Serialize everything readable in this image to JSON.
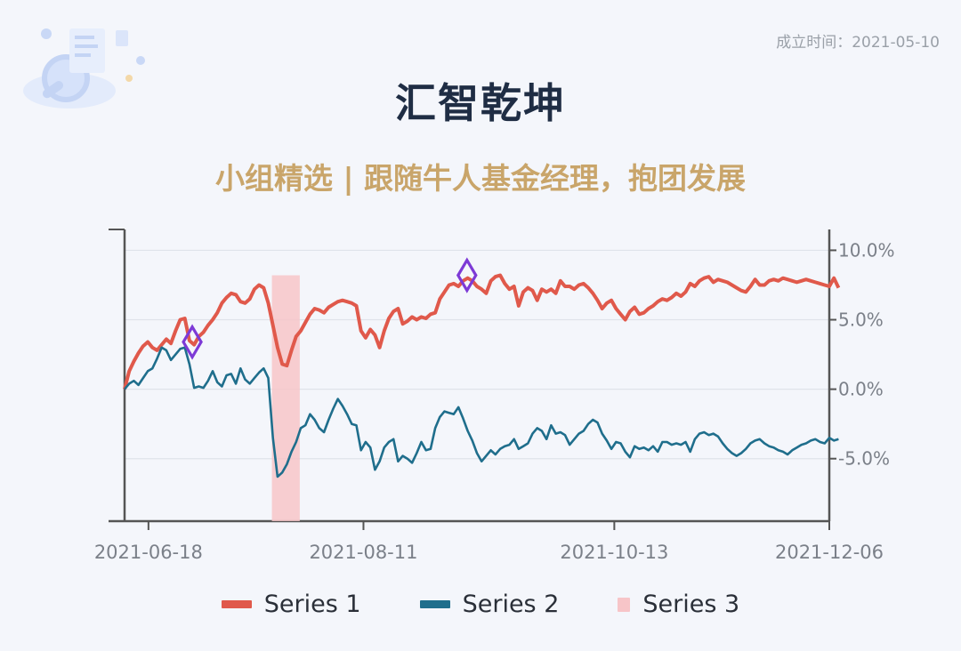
{
  "header": {
    "found_date": "成立时间：2021-05-10",
    "title": "汇智乾坤",
    "subtitle": "小组精选 | 跟随牛人基金经理，抱团发展"
  },
  "colors": {
    "fund": "#e0594b",
    "index": "#1f6e8c",
    "drawdown": "#f7c5c8",
    "marker": "#7d3ad6",
    "title": "#1f2d44",
    "subtitle": "#c9a56a"
  },
  "legend": [
    {
      "label": "Series 1",
      "color": "#e0594b",
      "style": "line"
    },
    {
      "label": "Series 2",
      "color": "#1f6e8c",
      "style": "line"
    },
    {
      "label": "Series 3",
      "color": "#f7c5c8",
      "style": "band"
    }
  ],
  "chart_data": {
    "type": "line",
    "x_ticks": [
      "2021-06-18",
      "2021-08-11",
      "2021-10-13",
      "2021-12-06"
    ],
    "y_ticks": [
      "10.0%",
      "5.0%",
      "0.0%",
      "-5.0%"
    ],
    "ylim": [
      -9.5,
      11.5
    ],
    "grid": true,
    "x_count": 153,
    "series": [
      {
        "name": "Series 1",
        "color": "#e0594b",
        "values": [
          0.0,
          1.3,
          2.0,
          2.6,
          3.1,
          3.4,
          3.0,
          2.8,
          3.2,
          3.6,
          3.3,
          4.2,
          5.0,
          5.1,
          3.5,
          3.2,
          3.8,
          4.1,
          4.6,
          5.0,
          5.5,
          6.2,
          6.6,
          6.9,
          6.8,
          6.3,
          6.2,
          6.5,
          7.2,
          7.5,
          7.3,
          6.2,
          4.6,
          3.0,
          1.8,
          1.7,
          2.8,
          3.8,
          4.2,
          4.8,
          5.4,
          5.8,
          5.7,
          5.5,
          5.9,
          6.1,
          6.3,
          6.4,
          6.3,
          6.2,
          6.0,
          4.2,
          3.7,
          4.3,
          3.9,
          3.0,
          4.2,
          5.1,
          5.6,
          5.8,
          4.7,
          4.9,
          5.2,
          5.0,
          5.2,
          5.1,
          5.4,
          5.5,
          6.5,
          7.0,
          7.5,
          7.6,
          7.4,
          7.8,
          8.0,
          7.8,
          7.4,
          7.2,
          6.9,
          7.8,
          8.1,
          8.2,
          7.6,
          7.2,
          7.4,
          6.0,
          7.0,
          7.3,
          7.1,
          6.4,
          7.2,
          7.0,
          7.2,
          6.9,
          7.8,
          7.4,
          7.4,
          7.2,
          7.5,
          7.6,
          7.3,
          6.9,
          6.4,
          5.8,
          6.2,
          6.4,
          5.8,
          5.4,
          5.0,
          5.6,
          5.9,
          5.4,
          5.5,
          5.8,
          6.0,
          6.3,
          6.5,
          6.4,
          6.6,
          6.9,
          6.7,
          7.0,
          7.6,
          7.4,
          7.8,
          8.0,
          8.1,
          7.7,
          7.9,
          7.8,
          7.7,
          7.5,
          7.3,
          7.1,
          7.0,
          7.4,
          7.9,
          7.5,
          7.5,
          7.8,
          7.9,
          7.8,
          8.0,
          7.9,
          7.8,
          7.7,
          7.8,
          7.9,
          7.8,
          7.7,
          7.6,
          7.5,
          7.4,
          8.0,
          7.3
        ]
      },
      {
        "name": "Series 2",
        "color": "#1f6e8c",
        "values": [
          0.0,
          0.4,
          0.6,
          0.3,
          0.8,
          1.3,
          1.5,
          2.2,
          3.0,
          2.8,
          2.1,
          2.5,
          2.9,
          3.0,
          1.8,
          0.1,
          0.2,
          0.1,
          0.6,
          1.3,
          0.5,
          0.2,
          1.0,
          1.1,
          0.4,
          1.5,
          0.7,
          0.4,
          0.8,
          1.2,
          1.5,
          0.8,
          -3.5,
          -6.3,
          -6.0,
          -5.4,
          -4.5,
          -3.8,
          -2.8,
          -2.6,
          -1.8,
          -2.2,
          -2.8,
          -3.1,
          -2.2,
          -1.4,
          -0.7,
          -1.2,
          -1.8,
          -2.5,
          -2.6,
          -4.4,
          -3.8,
          -4.2,
          -5.8,
          -5.2,
          -4.2,
          -3.8,
          -3.6,
          -5.2,
          -4.8,
          -5.0,
          -5.3,
          -4.6,
          -3.8,
          -4.4,
          -4.3,
          -2.8,
          -2.0,
          -1.6,
          -1.7,
          -1.8,
          -1.3,
          -2.1,
          -3.0,
          -3.7,
          -4.6,
          -5.2,
          -4.8,
          -4.4,
          -4.7,
          -4.3,
          -4.1,
          -4.0,
          -3.6,
          -4.3,
          -4.1,
          -3.9,
          -3.2,
          -2.8,
          -3.0,
          -3.6,
          -2.6,
          -3.2,
          -3.1,
          -3.3,
          -4.0,
          -3.6,
          -3.2,
          -3.0,
          -2.5,
          -2.2,
          -2.4,
          -3.2,
          -3.7,
          -4.3,
          -3.8,
          -3.9,
          -4.5,
          -4.9,
          -4.1,
          -4.3,
          -4.2,
          -4.4,
          -4.1,
          -4.5,
          -3.8,
          -3.8,
          -4.0,
          -3.9,
          -4.0,
          -3.8,
          -4.5,
          -3.6,
          -3.2,
          -3.1,
          -3.3,
          -3.2,
          -3.4,
          -3.9,
          -4.3,
          -4.6,
          -4.8,
          -4.6,
          -4.3,
          -3.9,
          -3.7,
          -3.6,
          -3.9,
          -4.1,
          -4.2,
          -4.4,
          -4.5,
          -4.7,
          -4.4,
          -4.2,
          -4.0,
          -3.9,
          -3.7,
          -3.6,
          -3.8,
          -3.9,
          -3.5,
          -3.7,
          -3.6
        ]
      }
    ],
    "max_drawdown": {
      "start": "2021-07-19",
      "end": "2021-07-26"
    },
    "markers": [
      {
        "date": "2021-06-29",
        "value": 3.4
      },
      {
        "date": "2021-09-06",
        "value": 8.2
      }
    ]
  }
}
